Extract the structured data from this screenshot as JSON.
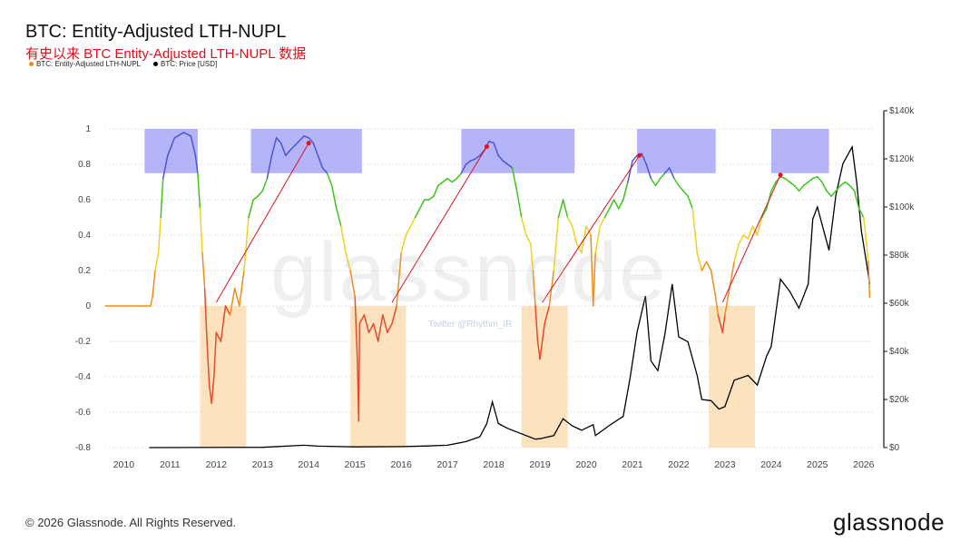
{
  "header": {
    "title": "BTC: Entity-Adjusted LTH-NUPL",
    "subtitle": "有史以来 BTC Entity-Adjusted LTH-NUPL 数据"
  },
  "legend": [
    {
      "label": "BTC: Entity-Adjusted LTH-NUPL",
      "color": "#f08c1a"
    },
    {
      "label": "BTC: Price [USD]",
      "color": "#000000"
    }
  ],
  "watermark": "glassnode",
  "twitter_watermark": "Twitter @Rhythm_IR",
  "footer": {
    "copyright": "© 2026 Glassnode. All Rights Reserved.",
    "brand": "glassnode"
  },
  "chart_data": {
    "type": "line",
    "x_ticks": [
      "2010",
      "2011",
      "2012",
      "2013",
      "2014",
      "2015",
      "2016",
      "2017",
      "2018",
      "2019",
      "2020",
      "2021",
      "2022",
      "2023",
      "2024",
      "2025",
      "2026"
    ],
    "y_left_ticks": [
      "1",
      "0.8",
      "0.6",
      "0.4",
      "0.2",
      "0",
      "-0.2",
      "-0.4",
      "-0.6",
      "-0.8"
    ],
    "y_right_ticks": [
      "$140k",
      "$120k",
      "$100k",
      "$80k",
      "$60k",
      "$40k",
      "$20k",
      "$0"
    ],
    "ylim_left": [
      -0.8,
      1.0
    ],
    "ylim_right": [
      0,
      140000
    ],
    "xlim": [
      2009.6,
      2026.2
    ],
    "grid": "horizontal dashed",
    "colors": {
      "blue": "#4a55d8",
      "green": "#3cc71a",
      "yellow": "#f0d020",
      "orange": "#f08c1a",
      "red": "#e84a2a",
      "price": "#000000"
    },
    "series": [
      {
        "name": "BTC: Entity-Adjusted LTH-NUPL",
        "points": [
          [
            2009.6,
            0
          ],
          [
            2010.4,
            0
          ],
          [
            2010.58,
            0
          ],
          [
            2010.62,
            0.05
          ],
          [
            2010.68,
            0.2
          ],
          [
            2010.75,
            0.3
          ],
          [
            2010.8,
            0.5
          ],
          [
            2010.85,
            0.72
          ],
          [
            2010.95,
            0.85
          ],
          [
            2011.1,
            0.95
          ],
          [
            2011.3,
            0.98
          ],
          [
            2011.45,
            0.96
          ],
          [
            2011.55,
            0.85
          ],
          [
            2011.6,
            0.75
          ],
          [
            2011.65,
            0.55
          ],
          [
            2011.7,
            0.3
          ],
          [
            2011.75,
            0.1
          ],
          [
            2011.8,
            -0.2
          ],
          [
            2011.85,
            -0.45
          ],
          [
            2011.9,
            -0.55
          ],
          [
            2011.95,
            -0.4
          ],
          [
            2012.0,
            -0.15
          ],
          [
            2012.1,
            -0.2
          ],
          [
            2012.2,
            0.0
          ],
          [
            2012.3,
            -0.05
          ],
          [
            2012.4,
            0.1
          ],
          [
            2012.5,
            0.0
          ],
          [
            2012.6,
            0.2
          ],
          [
            2012.7,
            0.5
          ],
          [
            2012.8,
            0.6
          ],
          [
            2012.9,
            0.62
          ],
          [
            2013.0,
            0.65
          ],
          [
            2013.1,
            0.72
          ],
          [
            2013.2,
            0.85
          ],
          [
            2013.3,
            0.95
          ],
          [
            2013.4,
            0.92
          ],
          [
            2013.5,
            0.85
          ],
          [
            2013.6,
            0.88
          ],
          [
            2013.75,
            0.92
          ],
          [
            2013.9,
            0.96
          ],
          [
            2014.0,
            0.95
          ],
          [
            2014.1,
            0.92
          ],
          [
            2014.2,
            0.85
          ],
          [
            2014.3,
            0.78
          ],
          [
            2014.4,
            0.75
          ],
          [
            2014.5,
            0.68
          ],
          [
            2014.6,
            0.55
          ],
          [
            2014.7,
            0.45
          ],
          [
            2014.8,
            0.3
          ],
          [
            2014.9,
            0.2
          ],
          [
            2015.0,
            0.05
          ],
          [
            2015.05,
            -0.3
          ],
          [
            2015.08,
            -0.65
          ],
          [
            2015.1,
            -0.1
          ],
          [
            2015.2,
            -0.05
          ],
          [
            2015.3,
            -0.15
          ],
          [
            2015.4,
            -0.1
          ],
          [
            2015.5,
            -0.2
          ],
          [
            2015.6,
            -0.05
          ],
          [
            2015.7,
            -0.15
          ],
          [
            2015.8,
            -0.1
          ],
          [
            2015.9,
            0.0
          ],
          [
            2016.0,
            0.3
          ],
          [
            2016.1,
            0.4
          ],
          [
            2016.2,
            0.45
          ],
          [
            2016.3,
            0.5
          ],
          [
            2016.4,
            0.55
          ],
          [
            2016.5,
            0.6
          ],
          [
            2016.6,
            0.6
          ],
          [
            2016.7,
            0.62
          ],
          [
            2016.8,
            0.68
          ],
          [
            2016.9,
            0.7
          ],
          [
            2017.0,
            0.72
          ],
          [
            2017.1,
            0.7
          ],
          [
            2017.2,
            0.72
          ],
          [
            2017.3,
            0.75
          ],
          [
            2017.4,
            0.8
          ],
          [
            2017.5,
            0.82
          ],
          [
            2017.6,
            0.83
          ],
          [
            2017.7,
            0.85
          ],
          [
            2017.8,
            0.88
          ],
          [
            2017.9,
            0.93
          ],
          [
            2018.0,
            0.92
          ],
          [
            2018.1,
            0.85
          ],
          [
            2018.2,
            0.82
          ],
          [
            2018.3,
            0.8
          ],
          [
            2018.4,
            0.78
          ],
          [
            2018.5,
            0.65
          ],
          [
            2018.6,
            0.5
          ],
          [
            2018.7,
            0.4
          ],
          [
            2018.8,
            0.35
          ],
          [
            2018.85,
            0.2
          ],
          [
            2018.9,
            0.0
          ],
          [
            2018.95,
            -0.2
          ],
          [
            2019.0,
            -0.3
          ],
          [
            2019.05,
            -0.2
          ],
          [
            2019.1,
            -0.1
          ],
          [
            2019.2,
            0.0
          ],
          [
            2019.3,
            0.2
          ],
          [
            2019.4,
            0.5
          ],
          [
            2019.5,
            0.6
          ],
          [
            2019.6,
            0.5
          ],
          [
            2019.7,
            0.45
          ],
          [
            2019.8,
            0.35
          ],
          [
            2019.9,
            0.3
          ],
          [
            2020.0,
            0.45
          ],
          [
            2020.1,
            0.4
          ],
          [
            2020.15,
            0.0
          ],
          [
            2020.2,
            0.3
          ],
          [
            2020.3,
            0.45
          ],
          [
            2020.4,
            0.5
          ],
          [
            2020.5,
            0.55
          ],
          [
            2020.6,
            0.6
          ],
          [
            2020.7,
            0.55
          ],
          [
            2020.8,
            0.6
          ],
          [
            2020.9,
            0.7
          ],
          [
            2021.0,
            0.82
          ],
          [
            2021.1,
            0.85
          ],
          [
            2021.2,
            0.86
          ],
          [
            2021.3,
            0.8
          ],
          [
            2021.4,
            0.72
          ],
          [
            2021.5,
            0.68
          ],
          [
            2021.6,
            0.72
          ],
          [
            2021.7,
            0.75
          ],
          [
            2021.8,
            0.78
          ],
          [
            2021.9,
            0.72
          ],
          [
            2022.0,
            0.68
          ],
          [
            2022.1,
            0.65
          ],
          [
            2022.2,
            0.62
          ],
          [
            2022.3,
            0.55
          ],
          [
            2022.4,
            0.3
          ],
          [
            2022.5,
            0.2
          ],
          [
            2022.6,
            0.25
          ],
          [
            2022.7,
            0.2
          ],
          [
            2022.8,
            0.05
          ],
          [
            2022.85,
            -0.05
          ],
          [
            2022.9,
            -0.1
          ],
          [
            2022.95,
            -0.15
          ],
          [
            2023.0,
            -0.05
          ],
          [
            2023.1,
            0.1
          ],
          [
            2023.2,
            0.25
          ],
          [
            2023.3,
            0.35
          ],
          [
            2023.4,
            0.4
          ],
          [
            2023.5,
            0.38
          ],
          [
            2023.6,
            0.45
          ],
          [
            2023.7,
            0.4
          ],
          [
            2023.8,
            0.5
          ],
          [
            2023.9,
            0.55
          ],
          [
            2024.0,
            0.65
          ],
          [
            2024.1,
            0.7
          ],
          [
            2024.2,
            0.73
          ],
          [
            2024.3,
            0.72
          ],
          [
            2024.4,
            0.7
          ],
          [
            2024.5,
            0.68
          ],
          [
            2024.6,
            0.65
          ],
          [
            2024.7,
            0.68
          ],
          [
            2024.8,
            0.7
          ],
          [
            2024.9,
            0.72
          ],
          [
            2025.0,
            0.73
          ],
          [
            2025.1,
            0.7
          ],
          [
            2025.2,
            0.65
          ],
          [
            2025.3,
            0.62
          ],
          [
            2025.4,
            0.65
          ],
          [
            2025.5,
            0.68
          ],
          [
            2025.6,
            0.7
          ],
          [
            2025.7,
            0.68
          ],
          [
            2025.8,
            0.65
          ],
          [
            2025.9,
            0.55
          ],
          [
            2026.0,
            0.5
          ],
          [
            2026.05,
            0.38
          ],
          [
            2026.1,
            0.25
          ],
          [
            2026.13,
            0.05
          ]
        ]
      },
      {
        "name": "BTC: Price [USD]",
        "points": [
          [
            2010.55,
            0
          ],
          [
            2013.0,
            100
          ],
          [
            2013.9,
            1000
          ],
          [
            2014.2,
            600
          ],
          [
            2015.0,
            300
          ],
          [
            2016.0,
            400
          ],
          [
            2016.5,
            650
          ],
          [
            2017.0,
            1000
          ],
          [
            2017.4,
            2500
          ],
          [
            2017.7,
            4500
          ],
          [
            2017.85,
            10000
          ],
          [
            2017.97,
            19000
          ],
          [
            2018.1,
            10000
          ],
          [
            2018.3,
            8000
          ],
          [
            2018.5,
            6500
          ],
          [
            2018.9,
            3500
          ],
          [
            2019.0,
            3700
          ],
          [
            2019.3,
            5000
          ],
          [
            2019.5,
            12000
          ],
          [
            2019.7,
            9000
          ],
          [
            2019.9,
            7200
          ],
          [
            2020.15,
            9500
          ],
          [
            2020.2,
            5000
          ],
          [
            2020.5,
            9200
          ],
          [
            2020.8,
            13000
          ],
          [
            2020.95,
            29000
          ],
          [
            2021.1,
            48000
          ],
          [
            2021.28,
            63000
          ],
          [
            2021.4,
            36000
          ],
          [
            2021.55,
            32000
          ],
          [
            2021.7,
            47000
          ],
          [
            2021.86,
            68000
          ],
          [
            2022.0,
            46000
          ],
          [
            2022.2,
            44000
          ],
          [
            2022.4,
            30000
          ],
          [
            2022.5,
            20000
          ],
          [
            2022.7,
            19500
          ],
          [
            2022.87,
            16000
          ],
          [
            2023.0,
            17000
          ],
          [
            2023.2,
            28000
          ],
          [
            2023.5,
            30000
          ],
          [
            2023.7,
            26000
          ],
          [
            2023.9,
            38000
          ],
          [
            2024.0,
            42000
          ],
          [
            2024.2,
            70000
          ],
          [
            2024.4,
            65000
          ],
          [
            2024.6,
            58000
          ],
          [
            2024.8,
            68000
          ],
          [
            2024.9,
            95000
          ],
          [
            2025.0,
            100000
          ],
          [
            2025.25,
            82000
          ],
          [
            2025.4,
            105000
          ],
          [
            2025.55,
            118000
          ],
          [
            2025.75,
            125000
          ],
          [
            2025.85,
            110000
          ],
          [
            2025.95,
            90000
          ],
          [
            2026.05,
            78000
          ],
          [
            2026.13,
            68000
          ]
        ]
      }
    ],
    "highlight_bands": [
      {
        "color": "#9d9bf5",
        "x": [
          2010.45,
          2011.6
        ],
        "y": [
          0.75,
          1.0
        ]
      },
      {
        "color": "#9d9bf5",
        "x": [
          2012.75,
          2015.15
        ],
        "y": [
          0.75,
          1.0
        ]
      },
      {
        "color": "#9d9bf5",
        "x": [
          2017.3,
          2019.75
        ],
        "y": [
          0.75,
          1.0
        ]
      },
      {
        "color": "#9d9bf5",
        "x": [
          2021.1,
          2022.8
        ],
        "y": [
          0.75,
          1.0
        ]
      },
      {
        "color": "#9d9bf5",
        "x": [
          2024.0,
          2025.25
        ],
        "y": [
          0.75,
          1.0
        ]
      },
      {
        "color": "#fbd9a8",
        "x": [
          2011.65,
          2012.65
        ],
        "y": [
          -0.8,
          0.0
        ]
      },
      {
        "color": "#fbd9a8",
        "x": [
          2014.9,
          2016.1
        ],
        "y": [
          -0.8,
          0.0
        ]
      },
      {
        "color": "#fbd9a8",
        "x": [
          2018.6,
          2019.6
        ],
        "y": [
          -0.8,
          0.0
        ]
      },
      {
        "color": "#fbd9a8",
        "x": [
          2022.65,
          2023.65
        ],
        "y": [
          -0.8,
          0.0
        ]
      }
    ],
    "trend_lines": [
      {
        "color": "#e0101a",
        "from": [
          2012.0,
          0.02
        ],
        "to": [
          2014.0,
          0.92
        ]
      },
      {
        "color": "#e0101a",
        "from": [
          2015.8,
          0.02
        ],
        "to": [
          2017.85,
          0.9
        ]
      },
      {
        "color": "#e0101a",
        "from": [
          2019.05,
          0.02
        ],
        "to": [
          2021.15,
          0.85
        ]
      },
      {
        "color": "#e0101a",
        "from": [
          2022.95,
          0.02
        ],
        "to": [
          2024.2,
          0.74
        ]
      }
    ]
  }
}
